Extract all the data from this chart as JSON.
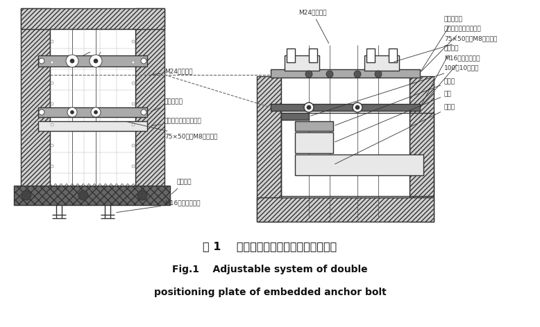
{
  "title_cn": "图 1    预埋柱脚螺栓双层定位板可调体系",
  "title_en_line1": "Fig.1    Adjustable system of double",
  "title_en_line2": "positioning plate of embedded anchor bolt",
  "bg_color": "#ffffff",
  "line_color": "#333333",
  "gray_light": "#e8e8e8",
  "gray_mid": "#aaaaaa",
  "gray_dark": "#666666",
  "hatch_fc": "#d0d0d0"
}
